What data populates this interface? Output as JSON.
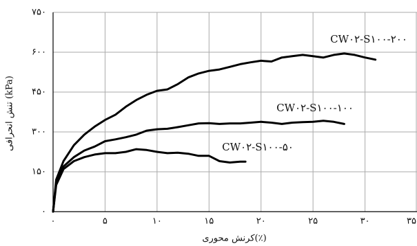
{
  "chart_data": {
    "type": "line",
    "x_label": "کرنش محوری(٪)",
    "y_label": "تنش انحرافی (kPa)",
    "xlim": [
      0,
      35
    ],
    "ylim": [
      0,
      750
    ],
    "xticks": [
      {
        "value": 0,
        "label": "۰"
      },
      {
        "value": 5,
        "label": "۵"
      },
      {
        "value": 10,
        "label": "۱۰"
      },
      {
        "value": 15,
        "label": "۱۵"
      },
      {
        "value": 20,
        "label": "۲۰"
      },
      {
        "value": 25,
        "label": "۲۵"
      },
      {
        "value": 30,
        "label": "۳۰"
      },
      {
        "value": 35,
        "label": "۳۵"
      }
    ],
    "yticks": [
      {
        "value": 0,
        "label": "۰"
      },
      {
        "value": 150,
        "label": "۱۵۰"
      },
      {
        "value": 300,
        "label": "۳۰۰"
      },
      {
        "value": 450,
        "label": "۴۵۰"
      },
      {
        "value": 600,
        "label": "۶۰۰"
      },
      {
        "value": 750,
        "label": "۷۵۰"
      }
    ],
    "grid": true,
    "series": [
      {
        "name": "CW۰۲-S۱۰۰-۲۰۰",
        "color": "#000000",
        "x": [
          0,
          0.3,
          1,
          2,
          3,
          4,
          5,
          6,
          7,
          8,
          9,
          10,
          11,
          12,
          13,
          14,
          15,
          16,
          17,
          18,
          19,
          20,
          21,
          22,
          23,
          24,
          25,
          26,
          27,
          28,
          29,
          30,
          31
        ],
        "values": [
          0,
          120,
          190,
          250,
          290,
          320,
          345,
          365,
          395,
          420,
          440,
          455,
          460,
          480,
          505,
          520,
          530,
          535,
          545,
          555,
          562,
          568,
          565,
          580,
          585,
          590,
          585,
          580,
          590,
          595,
          590,
          580,
          572
        ]
      },
      {
        "name": "CW۰۲-S۱۰۰-۱۰۰",
        "color": "#000000",
        "x": [
          0,
          0.3,
          1,
          2,
          3,
          4,
          5,
          6,
          7,
          8,
          9,
          10,
          11,
          12,
          13,
          14,
          15,
          16,
          17,
          18,
          19,
          20,
          21,
          22,
          23,
          24,
          25,
          26,
          27,
          28
        ],
        "values": [
          0,
          110,
          170,
          205,
          230,
          245,
          265,
          272,
          280,
          290,
          305,
          310,
          312,
          318,
          325,
          332,
          333,
          330,
          332,
          332,
          335,
          338,
          335,
          330,
          335,
          337,
          338,
          342,
          338,
          330
        ]
      },
      {
        "name": "CW۰۲-S۱۰۰-۵۰",
        "color": "#000000",
        "x": [
          0,
          0.3,
          1,
          2,
          3,
          4,
          5,
          6,
          7,
          8,
          9,
          10,
          11,
          12,
          13,
          14,
          15,
          16,
          17,
          18,
          18.5
        ],
        "values": [
          0,
          100,
          160,
          190,
          205,
          215,
          220,
          220,
          225,
          235,
          232,
          225,
          220,
          222,
          218,
          210,
          210,
          190,
          185,
          188,
          188
        ]
      }
    ]
  }
}
